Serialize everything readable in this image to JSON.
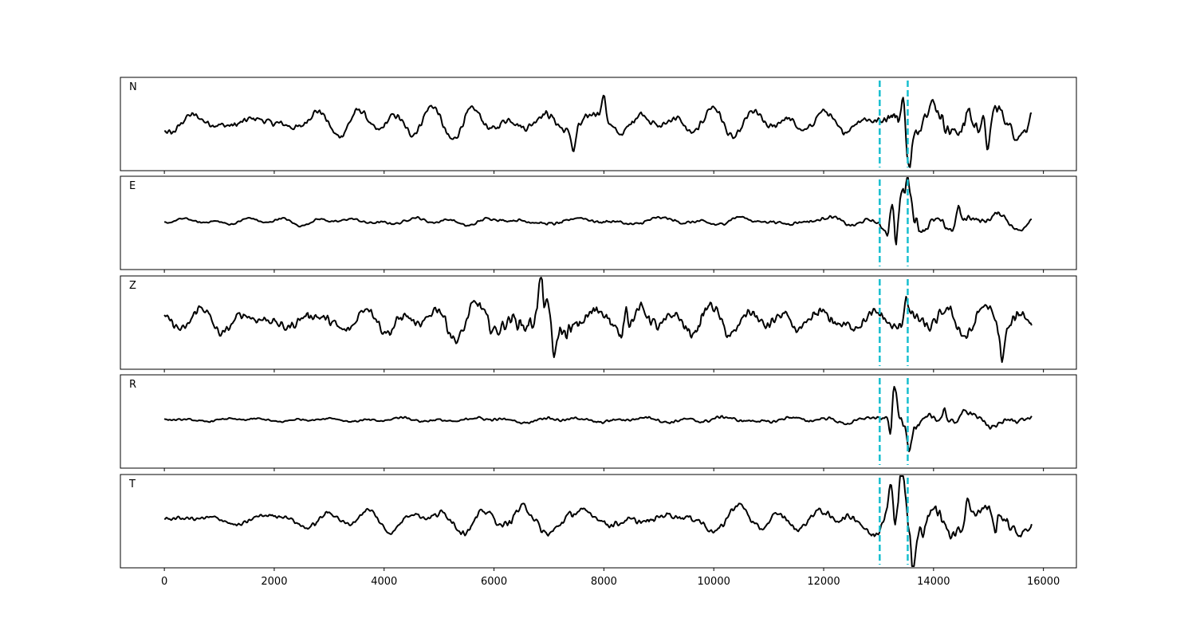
{
  "chart_data": {
    "type": "line",
    "title": "",
    "xlabel": "",
    "ylabel": "",
    "xlim": [
      -800,
      16600
    ],
    "x_ticks": [
      "0",
      "2000",
      "4000",
      "6000",
      "8000",
      "10000",
      "12000",
      "14000",
      "16000"
    ],
    "x_tick_values": [
      0,
      2000,
      4000,
      6000,
      8000,
      10000,
      12000,
      14000,
      16000
    ],
    "sample_range": [
      0,
      15800
    ],
    "grid": false,
    "y_ticks_shown": false,
    "trace_color": "#000000",
    "marker_color": "#17becf",
    "markers": [
      {
        "x": 13020,
        "style": "dashed"
      },
      {
        "x": 13530,
        "style": "dashed"
      }
    ],
    "panels": [
      {
        "label": "N",
        "noise_amplitude": 0.16,
        "envelope": [
          [
            0,
            1.0
          ],
          [
            3000,
            1.05
          ],
          [
            6500,
            1.1
          ],
          [
            7500,
            1.3
          ],
          [
            11000,
            1.1
          ],
          [
            12900,
            1.0
          ],
          [
            13050,
            1.8
          ],
          [
            13300,
            2.5
          ],
          [
            13600,
            2.2
          ],
          [
            14500,
            2.4
          ],
          [
            15000,
            2.5
          ],
          [
            15800,
            1.6
          ]
        ],
        "spikes": [
          {
            "x": 7450,
            "value": -0.26
          },
          {
            "x": 8000,
            "value": 0.25
          },
          {
            "x": 13440,
            "value": 0.4
          },
          {
            "x": 13560,
            "value": -0.34
          },
          {
            "x": 14640,
            "value": 0.22
          },
          {
            "x": 15000,
            "value": -0.45
          },
          {
            "x": 15780,
            "value": 0.12
          }
        ]
      },
      {
        "label": "E",
        "noise_amplitude": 0.07,
        "envelope": [
          [
            0,
            0.6
          ],
          [
            6000,
            1.0
          ],
          [
            7000,
            1.1
          ],
          [
            12900,
            1.2
          ],
          [
            13100,
            2.0
          ],
          [
            13250,
            6.5
          ],
          [
            13600,
            5.5
          ],
          [
            14000,
            3.0
          ],
          [
            15000,
            2.0
          ],
          [
            15800,
            1.5
          ]
        ],
        "spikes": [
          {
            "x": 13250,
            "value": 0.34
          },
          {
            "x": 13320,
            "value": -0.5
          },
          {
            "x": 13540,
            "value": 0.28
          },
          {
            "x": 14450,
            "value": 0.24
          }
        ]
      },
      {
        "label": "Z",
        "noise_amplitude": 0.22,
        "envelope": [
          [
            0,
            0.9
          ],
          [
            3000,
            1.1
          ],
          [
            6200,
            1.5
          ],
          [
            6800,
            2.2
          ],
          [
            7200,
            2.1
          ],
          [
            8000,
            1.8
          ],
          [
            10000,
            1.2
          ],
          [
            12000,
            1.4
          ],
          [
            13000,
            1.3
          ],
          [
            15800,
            1.4
          ]
        ],
        "spikes": [
          {
            "x": 6850,
            "value": 0.38
          },
          {
            "x": 7100,
            "value": -0.5
          },
          {
            "x": 8400,
            "value": 0.34
          },
          {
            "x": 13500,
            "value": 0.3
          },
          {
            "x": 15250,
            "value": -0.34
          }
        ]
      },
      {
        "label": "R",
        "noise_amplitude": 0.06,
        "envelope": [
          [
            0,
            0.7
          ],
          [
            6000,
            1.2
          ],
          [
            11500,
            1.3
          ],
          [
            13100,
            1.4
          ],
          [
            13250,
            6.0
          ],
          [
            13500,
            4.5
          ],
          [
            14000,
            3.5
          ],
          [
            15000,
            2.8
          ],
          [
            15800,
            2.0
          ]
        ],
        "spikes": [
          {
            "x": 13280,
            "value": 0.52
          },
          {
            "x": 13240,
            "value": -0.34
          },
          {
            "x": 13560,
            "value": -0.26
          },
          {
            "x": 14200,
            "value": 0.18
          }
        ]
      },
      {
        "label": "T",
        "noise_amplitude": 0.12,
        "envelope": [
          [
            0,
            0.8
          ],
          [
            3500,
            1.1
          ],
          [
            7000,
            1.8
          ],
          [
            8000,
            1.4
          ],
          [
            12800,
            1.4
          ],
          [
            13100,
            2.5
          ],
          [
            13350,
            4.5
          ],
          [
            13600,
            4.0
          ],
          [
            14500,
            2.5
          ],
          [
            15800,
            2.0
          ]
        ],
        "spikes": [
          {
            "x": 13310,
            "value": -0.5
          },
          {
            "x": 13440,
            "value": 0.42
          },
          {
            "x": 13630,
            "value": -0.45
          },
          {
            "x": 14620,
            "value": 0.3
          },
          {
            "x": 15120,
            "value": -0.28
          }
        ]
      }
    ]
  }
}
